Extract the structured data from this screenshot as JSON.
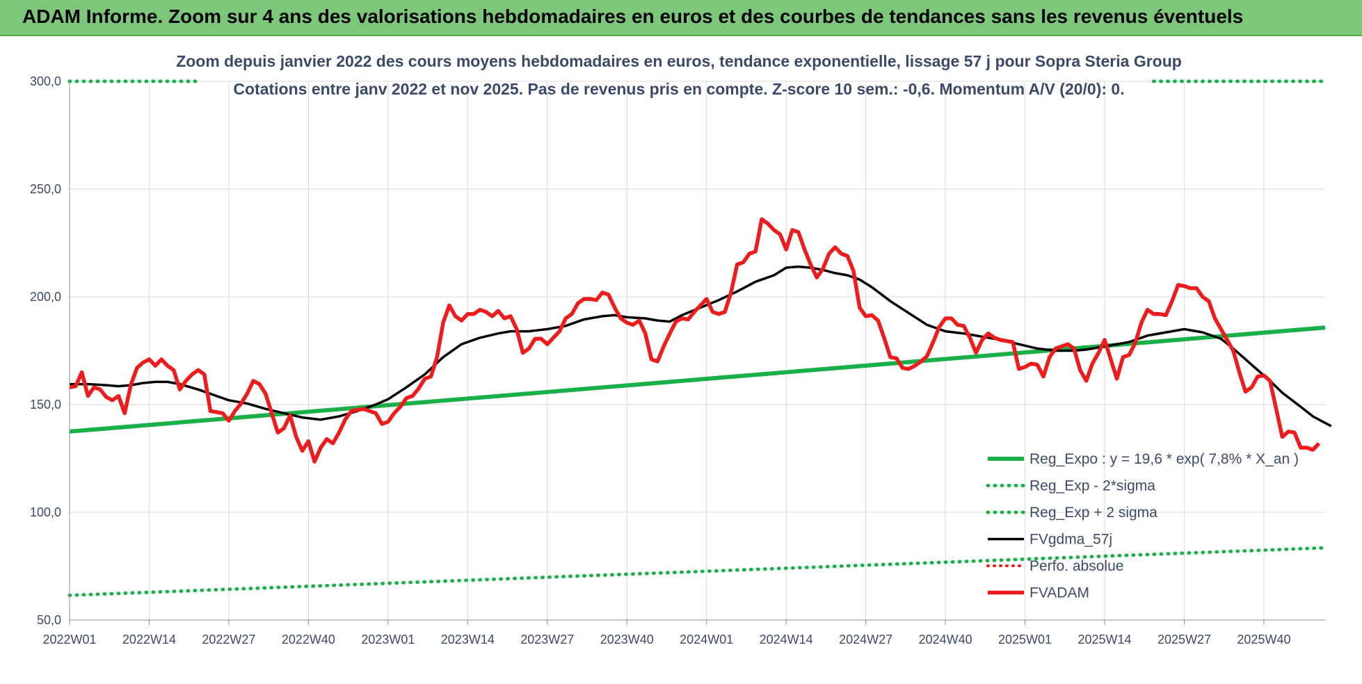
{
  "header": {
    "title": "ADAM Informe. Zoom sur 4 ans des valorisations hebdomadaires en euros et des courbes de tendances sans les revenus éventuels"
  },
  "colors": {
    "header_bg": "#7dc77a",
    "trend": "#19b04a",
    "band": "#19b04a",
    "mma": "#000000",
    "price": "#ee1c1c",
    "perfo": "#ee1c1c",
    "text": "#3b4a6b",
    "grid": "#d9d9d9"
  },
  "chart_data": {
    "type": "line",
    "subtitle_lines": [
      "Zoom depuis janvier 2022 des cours moyens hebdomadaires en euros, tendance exponentielle, lissage 57 j pour Sopra Steria Group",
      "Cotations entre janv 2022 et nov 2025. Pas de revenus pris en compte. Z-score 10 sem.: -0,6. Momentum A/V (20/0): 0."
    ],
    "xlim": [
      0,
      205
    ],
    "x_ticks": [
      {
        "x": 0,
        "label": "2022W01"
      },
      {
        "x": 13,
        "label": "2022W14"
      },
      {
        "x": 26,
        "label": "2022W27"
      },
      {
        "x": 39,
        "label": "2022W40"
      },
      {
        "x": 52,
        "label": "2023W01"
      },
      {
        "x": 65,
        "label": "2023W14"
      },
      {
        "x": 78,
        "label": "2023W27"
      },
      {
        "x": 91,
        "label": "2023W40"
      },
      {
        "x": 104,
        "label": "2024W01"
      },
      {
        "x": 117,
        "label": "2024W14"
      },
      {
        "x": 130,
        "label": "2024W27"
      },
      {
        "x": 143,
        "label": "2024W40"
      },
      {
        "x": 156,
        "label": "2025W01"
      },
      {
        "x": 169,
        "label": "2025W14"
      },
      {
        "x": 182,
        "label": "2025W27"
      },
      {
        "x": 195,
        "label": "2025W40"
      }
    ],
    "ylim": [
      50,
      300
    ],
    "y_ticks": [
      {
        "value": 50,
        "label": "50,0"
      },
      {
        "value": 100,
        "label": "100,0"
      },
      {
        "value": 150,
        "label": "150,0"
      },
      {
        "value": 200,
        "label": "200,0"
      },
      {
        "value": 250,
        "label": "250,0"
      },
      {
        "value": 300,
        "label": "300,0"
      }
    ],
    "grid": true,
    "legend_position": "bottom-right",
    "series": [
      {
        "name": "Reg_Expo : y = 19,6 * exp( 7,8% *  X_an )",
        "style": "thick-green",
        "points": [
          [
            0,
            137.5
          ],
          [
            205,
            185.7
          ]
        ]
      },
      {
        "name": "Reg_Exp - 2*sigma",
        "style": "dotted-green",
        "points": [
          [
            0,
            61.5
          ],
          [
            205,
            83.5
          ]
        ]
      },
      {
        "name": "Reg_Exp + 2 sigma",
        "style": "dotted-green",
        "points": [
          [
            0,
            300
          ],
          [
            21,
            300
          ]
        ],
        "points_b": [
          [
            177,
            300
          ],
          [
            205,
            300
          ]
        ]
      },
      {
        "name": "FVgdma_57j",
        "style": "black",
        "points": [
          [
            0,
            159.5
          ],
          [
            3,
            159.5
          ],
          [
            6,
            159
          ],
          [
            8,
            158.5
          ],
          [
            10,
            159
          ],
          [
            12,
            160
          ],
          [
            14,
            160.5
          ],
          [
            16,
            160.5
          ],
          [
            18,
            159.5
          ],
          [
            21,
            157
          ],
          [
            24,
            154
          ],
          [
            26,
            152
          ],
          [
            29,
            150.5
          ],
          [
            32,
            148
          ],
          [
            35,
            146
          ],
          [
            38,
            144
          ],
          [
            41,
            143
          ],
          [
            44,
            144.5
          ],
          [
            47,
            147
          ],
          [
            50,
            150
          ],
          [
            52,
            152.5
          ],
          [
            55,
            158
          ],
          [
            58,
            164
          ],
          [
            61,
            172
          ],
          [
            64,
            178
          ],
          [
            67,
            181
          ],
          [
            70,
            183
          ],
          [
            72,
            184
          ],
          [
            75,
            184
          ],
          [
            78,
            185
          ],
          [
            81,
            186.5
          ],
          [
            84,
            189.5
          ],
          [
            87,
            191
          ],
          [
            89,
            191.5
          ],
          [
            91,
            190.5
          ],
          [
            94,
            190
          ],
          [
            96,
            189
          ],
          [
            98,
            188.5
          ],
          [
            100,
            191.5
          ],
          [
            103,
            195
          ],
          [
            106,
            198.5
          ],
          [
            109,
            202.5
          ],
          [
            112,
            207
          ],
          [
            115,
            210
          ],
          [
            117,
            213.5
          ],
          [
            119,
            214
          ],
          [
            121,
            213.5
          ],
          [
            123,
            212.5
          ],
          [
            125,
            211
          ],
          [
            127,
            210
          ],
          [
            129,
            208
          ],
          [
            131,
            204.5
          ],
          [
            134,
            198
          ],
          [
            137,
            192.5
          ],
          [
            140,
            187
          ],
          [
            143,
            184
          ],
          [
            146,
            183
          ],
          [
            149,
            181.5
          ],
          [
            152,
            180
          ],
          [
            155,
            178
          ],
          [
            158,
            176
          ],
          [
            161,
            175
          ],
          [
            164,
            175
          ],
          [
            166,
            175.5
          ],
          [
            168,
            176.5
          ],
          [
            170,
            177.5
          ],
          [
            173,
            179
          ],
          [
            176,
            182
          ],
          [
            179,
            183.5
          ],
          [
            182,
            185
          ],
          [
            185,
            183.5
          ],
          [
            188,
            180.5
          ],
          [
            190,
            176
          ],
          [
            193,
            168.5
          ],
          [
            196,
            161
          ],
          [
            198,
            155.5
          ],
          [
            201,
            149
          ],
          [
            203,
            144.5
          ],
          [
            205,
            141.5
          ],
          [
            206,
            140
          ]
        ]
      },
      {
        "name": "Perfo. absolue",
        "style": "dotted-red",
        "points": []
      },
      {
        "name": "FVADAM",
        "style": "thick-red",
        "points": [
          [
            0,
            158
          ],
          [
            1,
            158.5
          ],
          [
            2,
            165
          ],
          [
            3,
            154
          ],
          [
            4,
            158
          ],
          [
            5,
            157
          ],
          [
            6,
            153.5
          ],
          [
            7,
            152
          ],
          [
            8,
            154
          ],
          [
            9,
            146
          ],
          [
            10,
            159
          ],
          [
            11,
            167
          ],
          [
            12,
            169.5
          ],
          [
            13,
            171
          ],
          [
            14,
            168
          ],
          [
            15,
            171
          ],
          [
            16,
            168
          ],
          [
            17,
            166
          ],
          [
            18,
            157
          ],
          [
            19,
            161
          ],
          [
            20,
            164
          ],
          [
            21,
            166
          ],
          [
            22,
            164
          ],
          [
            23,
            147
          ],
          [
            24,
            146.5
          ],
          [
            25,
            146
          ],
          [
            26,
            142.5
          ],
          [
            27,
            147
          ],
          [
            28,
            150.5
          ],
          [
            29,
            155
          ],
          [
            30,
            161
          ],
          [
            31,
            159.5
          ],
          [
            32,
            155
          ],
          [
            33,
            146
          ],
          [
            34,
            137
          ],
          [
            35,
            139
          ],
          [
            36,
            145
          ],
          [
            37,
            135
          ],
          [
            38,
            128.5
          ],
          [
            39,
            133
          ],
          [
            40,
            123.5
          ],
          [
            41,
            130
          ],
          [
            42,
            134
          ],
          [
            43,
            132
          ],
          [
            44,
            137
          ],
          [
            45,
            143
          ],
          [
            46,
            147
          ],
          [
            47,
            147.5
          ],
          [
            48,
            148
          ],
          [
            49,
            147
          ],
          [
            50,
            146
          ],
          [
            51,
            141
          ],
          [
            52,
            142
          ],
          [
            53,
            146
          ],
          [
            54,
            149
          ],
          [
            55,
            153
          ],
          [
            56,
            154
          ],
          [
            57,
            157.5
          ],
          [
            58,
            162
          ],
          [
            59,
            163
          ],
          [
            60,
            172
          ],
          [
            61,
            188
          ],
          [
            62,
            196
          ],
          [
            63,
            191
          ],
          [
            64,
            189
          ],
          [
            65,
            192
          ],
          [
            66,
            192
          ],
          [
            67,
            194
          ],
          [
            68,
            193
          ],
          [
            69,
            191
          ],
          [
            70,
            193.5
          ],
          [
            71,
            190
          ],
          [
            72,
            191
          ],
          [
            73,
            185
          ],
          [
            74,
            174
          ],
          [
            75,
            176
          ],
          [
            76,
            180.5
          ],
          [
            77,
            180.5
          ],
          [
            78,
            178
          ],
          [
            79,
            181
          ],
          [
            80,
            184
          ],
          [
            81,
            190
          ],
          [
            82,
            192
          ],
          [
            83,
            197
          ],
          [
            84,
            199
          ],
          [
            85,
            199
          ],
          [
            86,
            198.5
          ],
          [
            87,
            202
          ],
          [
            88,
            201
          ],
          [
            89,
            195
          ],
          [
            90,
            190
          ],
          [
            91,
            188
          ],
          [
            92,
            187
          ],
          [
            93,
            189
          ],
          [
            94,
            183
          ],
          [
            95,
            171
          ],
          [
            96,
            170
          ],
          [
            97,
            177
          ],
          [
            98,
            183
          ],
          [
            99,
            188.5
          ],
          [
            100,
            190
          ],
          [
            101,
            189.5
          ],
          [
            102,
            193
          ],
          [
            103,
            196
          ],
          [
            104,
            199
          ],
          [
            105,
            193
          ],
          [
            106,
            192
          ],
          [
            107,
            193
          ],
          [
            108,
            202
          ],
          [
            109,
            215
          ],
          [
            110,
            216
          ],
          [
            111,
            220
          ],
          [
            112,
            221
          ],
          [
            113,
            236
          ],
          [
            114,
            234
          ],
          [
            115,
            231
          ],
          [
            116,
            229
          ],
          [
            117,
            222
          ],
          [
            118,
            231
          ],
          [
            119,
            230
          ],
          [
            120,
            222
          ],
          [
            121,
            215
          ],
          [
            122,
            209
          ],
          [
            123,
            213
          ],
          [
            124,
            220
          ],
          [
            125,
            223
          ],
          [
            126,
            220
          ],
          [
            127,
            219
          ],
          [
            128,
            212
          ],
          [
            129,
            195
          ],
          [
            130,
            191
          ],
          [
            131,
            191.5
          ],
          [
            132,
            189
          ],
          [
            133,
            181
          ],
          [
            134,
            172
          ],
          [
            135,
            171.5
          ],
          [
            136,
            167
          ],
          [
            137,
            166.5
          ],
          [
            138,
            168
          ],
          [
            139,
            170
          ],
          [
            140,
            172.5
          ],
          [
            141,
            179
          ],
          [
            142,
            186
          ],
          [
            143,
            190
          ],
          [
            144,
            190
          ],
          [
            145,
            187
          ],
          [
            146,
            186.5
          ],
          [
            147,
            181
          ],
          [
            148,
            174
          ],
          [
            149,
            180
          ],
          [
            150,
            183
          ],
          [
            151,
            181
          ],
          [
            152,
            180
          ],
          [
            153,
            179.5
          ],
          [
            154,
            179
          ],
          [
            155,
            166.5
          ],
          [
            156,
            167.5
          ],
          [
            157,
            169
          ],
          [
            158,
            168.5
          ],
          [
            159,
            163
          ],
          [
            160,
            172
          ],
          [
            161,
            176
          ],
          [
            162,
            177
          ],
          [
            163,
            178
          ],
          [
            164,
            176
          ],
          [
            165,
            166
          ],
          [
            166,
            161
          ],
          [
            167,
            169
          ],
          [
            168,
            174
          ],
          [
            169,
            180
          ],
          [
            170,
            171
          ],
          [
            171,
            162
          ],
          [
            172,
            172
          ],
          [
            173,
            173
          ],
          [
            174,
            178.5
          ],
          [
            175,
            188
          ],
          [
            176,
            194
          ],
          [
            177,
            192
          ],
          [
            178,
            192
          ],
          [
            179,
            191.5
          ],
          [
            180,
            198
          ],
          [
            181,
            205.5
          ],
          [
            182,
            205
          ],
          [
            183,
            204
          ],
          [
            184,
            204
          ],
          [
            185,
            200
          ],
          [
            186,
            198
          ],
          [
            187,
            190
          ],
          [
            188,
            185
          ],
          [
            189,
            180
          ],
          [
            190,
            175
          ],
          [
            191,
            165
          ],
          [
            192,
            156
          ],
          [
            193,
            158
          ],
          [
            194,
            163
          ],
          [
            195,
            163.5
          ],
          [
            196,
            161
          ],
          [
            197,
            148
          ],
          [
            198,
            135
          ],
          [
            199,
            137.5
          ],
          [
            200,
            137
          ],
          [
            201,
            130
          ],
          [
            202,
            130
          ],
          [
            203,
            129
          ],
          [
            204,
            132
          ]
        ]
      }
    ]
  }
}
